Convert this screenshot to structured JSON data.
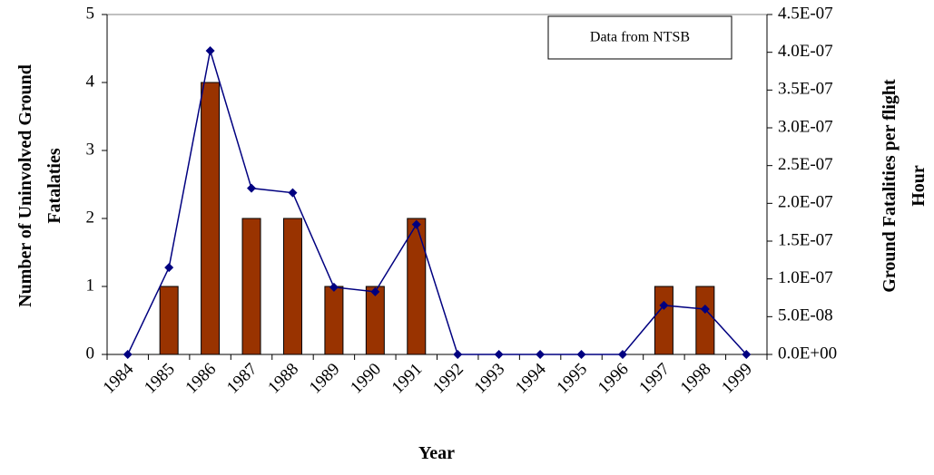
{
  "chart_data": {
    "type": "bar",
    "annotation": "Data from NTSB",
    "x_label": "Year",
    "y_label": "Number of Uninvolved Ground Fatalaties",
    "y2_label": "Ground Fatalities per flight Hour",
    "categories": [
      "1984",
      "1985",
      "1986",
      "1987",
      "1988",
      "1989",
      "1990",
      "1991",
      "1992",
      "1993",
      "1994",
      "1995",
      "1996",
      "1997",
      "1998",
      "1999"
    ],
    "series": [
      {
        "type": "bar",
        "color": "#993300",
        "values": [
          0,
          1,
          4,
          2,
          2,
          1,
          1,
          2,
          0,
          0,
          0,
          0,
          0,
          1,
          1,
          0
        ]
      },
      {
        "type": "line",
        "axis": "y2",
        "color": "#000080",
        "values": [
          0,
          1.15e-07,
          4.02e-07,
          2.2e-07,
          2.14e-07,
          8.9e-08,
          8.3e-08,
          1.72e-07,
          0,
          0,
          0,
          0,
          0,
          6.5e-08,
          6e-08,
          0
        ]
      }
    ],
    "ylim": [
      0,
      5
    ],
    "yticks": [
      0,
      1,
      2,
      3,
      4,
      5
    ],
    "y2lim": [
      0,
      4.5e-07
    ],
    "y2ticks": [
      {
        "value": 0,
        "label": "0.0E+00"
      },
      {
        "value": 5e-08,
        "label": "5.0E-08"
      },
      {
        "value": 1e-07,
        "label": "1.0E-07"
      },
      {
        "value": 1.5e-07,
        "label": "1.5E-07"
      },
      {
        "value": 2e-07,
        "label": "2.0E-07"
      },
      {
        "value": 2.5e-07,
        "label": "2.5E-07"
      },
      {
        "value": 3e-07,
        "label": "3.0E-07"
      },
      {
        "value": 3.5e-07,
        "label": "3.5E-07"
      },
      {
        "value": 4e-07,
        "label": "4.0E-07"
      },
      {
        "value": 4.5e-07,
        "label": "4.5E-07"
      }
    ]
  }
}
